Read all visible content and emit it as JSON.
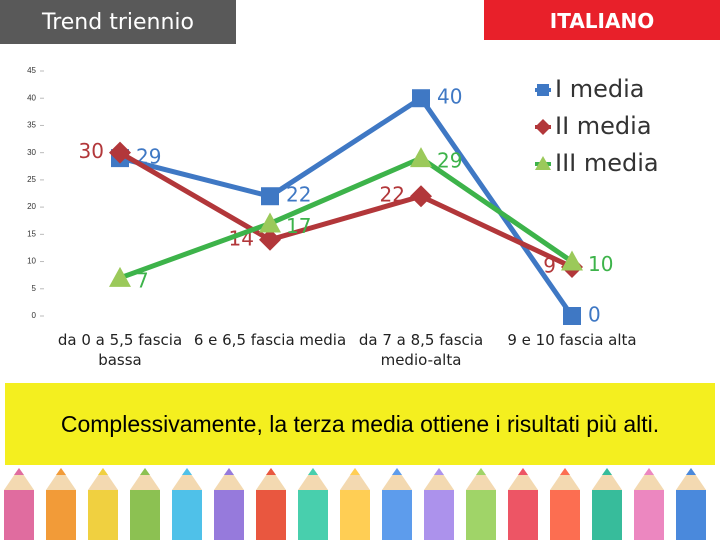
{
  "chart_data": {
    "type": "line",
    "title": "Trend triennio",
    "subtitle": "ITALIANO",
    "annotation": "Complessivamente, la terza media ottiene i risultati più alti.",
    "categories": [
      "da 0 a 5,5 fascia bassa",
      "6 e 6,5 fascia media",
      "da 7 a 8,5 fascia medio-alta",
      "9 e 10 fascia alta"
    ],
    "series": [
      {
        "name": "I media",
        "color": "#3f78c4",
        "marker": "square",
        "values": [
          29,
          22,
          40,
          0
        ]
      },
      {
        "name": "II media",
        "color": "#b2373a",
        "marker": "diamond",
        "values": [
          30,
          14,
          22,
          9
        ]
      },
      {
        "name": "III media",
        "color": "#3db34a",
        "marker": "triangle",
        "values": [
          7,
          17,
          29,
          10
        ]
      }
    ],
    "ylim": [
      0,
      45
    ],
    "yticks": [
      0,
      5,
      10,
      15,
      20,
      25,
      30,
      35,
      40,
      45
    ],
    "legend": "top-right"
  }
}
